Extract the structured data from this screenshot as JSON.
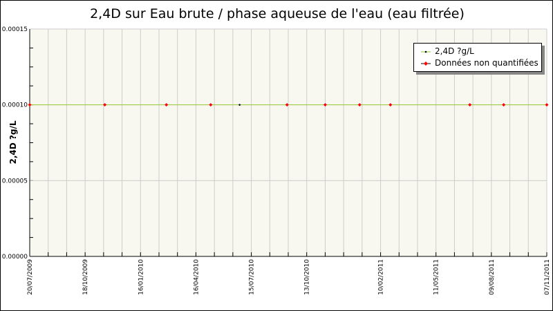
{
  "chart_data": {
    "type": "scatter",
    "title": "2,4D sur Eau brute / phase aqueuse de l'eau (eau filtrée)",
    "xlabel": "",
    "ylabel": "2,4D ?g/L",
    "xlim": [
      "2009-07-20",
      "2011-11-07"
    ],
    "ylim": [
      0,
      0.00015
    ],
    "y_ticks": [
      "0.00000",
      "0.00005",
      "0.00010",
      "0.00015"
    ],
    "x_ticks": [
      "20/07/2009",
      "18/10/2009",
      "16/01/2010",
      "16/04/2010",
      "15/07/2010",
      "13/10/2010",
      "10/02/2011",
      "11/05/2011",
      "09/08/2011",
      "07/11/2011"
    ],
    "grid": true,
    "legend_position": "top-right",
    "series": [
      {
        "name": "2,4D ?g/L",
        "color": "#000000",
        "line_color": "#99cc33",
        "points": [
          {
            "x": "2010-06-26",
            "y": 0.0001
          }
        ]
      },
      {
        "name": "Données non quantifiées",
        "color": "#ff0000",
        "points": [
          {
            "x": "2009-07-20",
            "y": 0.0001
          },
          {
            "x": "2009-11-19",
            "y": 0.0001
          },
          {
            "x": "2010-02-27",
            "y": 0.0001
          },
          {
            "x": "2010-05-10",
            "y": 0.0001
          },
          {
            "x": "2010-09-11",
            "y": 0.0001
          },
          {
            "x": "2010-11-12",
            "y": 0.0001
          },
          {
            "x": "2011-01-07",
            "y": 0.0001
          },
          {
            "x": "2011-02-26",
            "y": 0.0001
          },
          {
            "x": "2011-07-05",
            "y": 0.0001
          },
          {
            "x": "2011-08-29",
            "y": 0.0001
          },
          {
            "x": "2011-11-07",
            "y": 0.0001
          }
        ]
      }
    ],
    "background_color": "#f8f8f0",
    "grid_color": "#cccccc"
  }
}
